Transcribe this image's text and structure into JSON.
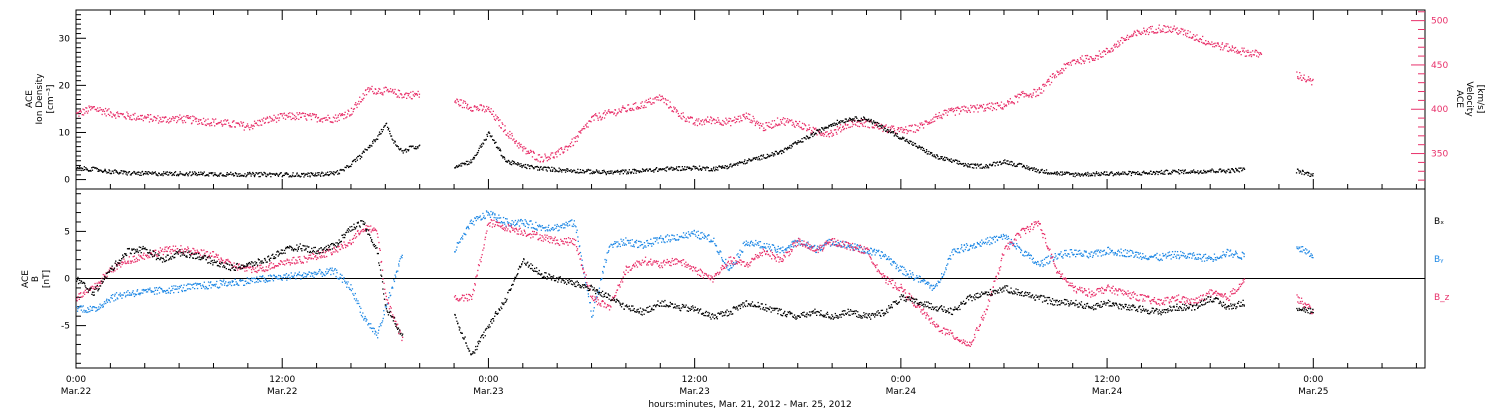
{
  "colors": {
    "density": "#000000",
    "velocity": "#e8306a",
    "bx": "#000000",
    "by": "#1e88e5",
    "bz": "#e8306a"
  },
  "x_axis": {
    "label": "hours:minutes, Mar. 21, 2012 - Mar. 25, 2012",
    "ticks": [
      {
        "hour": 0,
        "top": "0:00",
        "bottom": "Mar.22"
      },
      {
        "hour": 12,
        "top": "12:00",
        "bottom": "Mar.22"
      },
      {
        "hour": 24,
        "top": "0:00",
        "bottom": "Mar.23"
      },
      {
        "hour": 36,
        "top": "12:00",
        "bottom": "Mar.23"
      },
      {
        "hour": 48,
        "top": "0:00",
        "bottom": "Mar.24"
      },
      {
        "hour": 60,
        "top": "12:00",
        "bottom": "Mar.24"
      },
      {
        "hour": 72,
        "top": "0:00",
        "bottom": "Mar.25"
      }
    ]
  },
  "chart_data": [
    {
      "type": "scatter",
      "xlim": [
        0,
        78.5
      ],
      "ylabel_left": [
        "ACE",
        "Ion Density",
        "[cm⁻³]"
      ],
      "ylabel_right": [
        "ACE",
        "Velocity",
        "[km/s]"
      ],
      "ylim_left": [
        -2,
        36
      ],
      "ylim_right": [
        310,
        512
      ],
      "yticks_left": [
        0,
        10,
        20,
        30
      ],
      "yticks_right": [
        350,
        400,
        450,
        500
      ],
      "series": [
        {
          "name": "Density",
          "axis": "left",
          "color_key": "density",
          "x": [
            0,
            1,
            2,
            3,
            4,
            6,
            8,
            10,
            12,
            13,
            14,
            15,
            15.5,
            16,
            16.5,
            17,
            17.5,
            18,
            18.5,
            19,
            19.5,
            20,
            20.3,
            21,
            22,
            23,
            24,
            25,
            26,
            27,
            28,
            29,
            30,
            31,
            32,
            33,
            34,
            35,
            36,
            37,
            38,
            39,
            40,
            41,
            42,
            43,
            44,
            45,
            46,
            47,
            47.5,
            48,
            49,
            50,
            51,
            52,
            53,
            54,
            55,
            56,
            57,
            58,
            59,
            60,
            61,
            62,
            63,
            64,
            65,
            66,
            67,
            68,
            69,
            70,
            71,
            72
          ],
          "y": [
            2.5,
            2.3,
            1.8,
            1.5,
            1.4,
            1.4,
            1.3,
            1.2,
            1.2,
            1.1,
            1.2,
            1.5,
            2,
            3.5,
            5,
            7,
            9,
            12,
            8,
            6,
            7,
            7,
            null,
            null,
            3,
            4,
            10,
            4,
            3,
            2.5,
            2.2,
            2,
            1.8,
            1.6,
            1.8,
            2,
            2.3,
            2.5,
            2.6,
            2.4,
            3,
            4,
            5,
            6,
            8,
            10,
            12,
            13,
            13,
            11,
            10,
            9,
            7,
            5,
            4,
            3,
            3,
            4,
            3,
            2,
            1.5,
            1.2,
            1.3,
            1.4,
            1.4,
            1.5,
            1.6,
            1.8,
            1.8,
            2,
            2,
            2.3,
            null,
            null,
            2,
            1
          ]
        },
        {
          "name": "Velocity",
          "axis": "right",
          "color_key": "velocity",
          "x": [
            0,
            1,
            2,
            3,
            4,
            5,
            6,
            7,
            8,
            9,
            10,
            11,
            12,
            13,
            14,
            15,
            16,
            17,
            18,
            19,
            20,
            20.3,
            21,
            22,
            23,
            24,
            25,
            26,
            27,
            28,
            29,
            30,
            31,
            32,
            33,
            34,
            35,
            36,
            37,
            38,
            39,
            40,
            41,
            42,
            43,
            44,
            45,
            46,
            47,
            48,
            49,
            50,
            51,
            52,
            53,
            54,
            55,
            56,
            57,
            58,
            59,
            60,
            61,
            62,
            63,
            64,
            65,
            66,
            67,
            68,
            69,
            70,
            71,
            72
          ],
          "y": [
            395,
            402,
            396,
            393,
            391,
            389,
            390,
            388,
            386,
            384,
            381,
            388,
            392,
            393,
            391,
            390,
            398,
            423,
            421,
            417,
            417,
            null,
            null,
            410,
            403,
            400,
            376,
            355,
            345,
            350,
            365,
            390,
            396,
            401,
            406,
            414,
            396,
            385,
            389,
            386,
            393,
            380,
            388,
            384,
            375,
            374,
            385,
            385,
            379,
            376,
            380,
            392,
            398,
            401,
            403,
            405,
            416,
            420,
            440,
            455,
            458,
            466,
            480,
            488,
            492,
            490,
            483,
            475,
            470,
            465,
            462,
            null,
            440,
            430
          ]
        }
      ]
    },
    {
      "type": "scatter",
      "xlim": [
        0,
        78.5
      ],
      "ylabel_left": [
        "ACE",
        "B",
        "[nT]"
      ],
      "ylim": [
        -9.5,
        9.5
      ],
      "yticks": [
        -5,
        0,
        5
      ],
      "zero_line": true,
      "series": [
        {
          "name": "Bx",
          "color_key": "bx",
          "x": [
            0,
            1,
            2,
            3,
            4,
            5,
            6,
            7,
            8,
            9,
            10,
            11,
            12,
            13,
            14,
            15,
            16,
            16.7,
            17.5,
            18,
            19,
            20,
            21,
            22,
            23,
            24,
            25,
            26,
            27,
            28,
            29,
            30,
            31,
            32,
            33,
            34,
            35,
            36,
            37,
            38,
            39,
            40,
            41,
            42,
            43,
            44,
            45,
            46,
            47,
            48,
            49,
            50,
            51,
            52,
            53,
            54,
            55,
            56,
            57,
            58,
            59,
            60,
            61,
            62,
            63,
            64,
            65,
            66,
            67,
            68,
            69,
            70,
            71,
            72
          ],
          "y": [
            0,
            -1.5,
            1,
            3,
            3.2,
            2,
            2.8,
            2.5,
            1.8,
            1.2,
            1.5,
            2,
            3,
            3.4,
            3,
            3.5,
            5.5,
            6,
            3,
            -3,
            -6,
            null,
            null,
            -4,
            -8,
            -5,
            -2,
            2,
            0.5,
            0,
            -0.5,
            -1,
            -2,
            -3,
            -3.5,
            -2.5,
            -3,
            -3.2,
            -4,
            -3.5,
            -2.5,
            -3,
            -3.5,
            -4,
            -3.5,
            -4,
            -3.5,
            -4,
            -3.5,
            -2,
            -2.5,
            -3,
            -3.5,
            -2,
            -1.5,
            -1,
            -1.5,
            -2,
            -2.5,
            -2.5,
            -3,
            -2.5,
            -3,
            -3.2,
            -3.5,
            -3,
            -3,
            -2,
            -3,
            -2.5,
            null,
            null,
            -3,
            -3.5
          ]
        },
        {
          "name": "By",
          "color_key": "by",
          "x": [
            0,
            1,
            2,
            3,
            4,
            5,
            6,
            7,
            8,
            9,
            10,
            11,
            12,
            13,
            14,
            15,
            16,
            16.7,
            17.5,
            18,
            19,
            20,
            21,
            22,
            23,
            24,
            25,
            26,
            27,
            28,
            29,
            30,
            31,
            32,
            33,
            34,
            35,
            36,
            37,
            38,
            39,
            40,
            41,
            42,
            43,
            44,
            45,
            46,
            47,
            48,
            49,
            50,
            51,
            52,
            53,
            54,
            55,
            56,
            57,
            58,
            59,
            60,
            61,
            62,
            63,
            64,
            65,
            66,
            67,
            68,
            69,
            70,
            71,
            72
          ],
          "y": [
            -3,
            -3.3,
            -2,
            -1.5,
            -1.4,
            -1.2,
            -1,
            -0.8,
            -0.6,
            -0.4,
            -0.2,
            0,
            0.2,
            0.4,
            0.6,
            0.8,
            -1,
            -4,
            -6,
            -3,
            3,
            null,
            null,
            3,
            6,
            7,
            6,
            6,
            5.5,
            5.5,
            6,
            -4,
            3.5,
            4,
            3.6,
            4.2,
            4.5,
            4.8,
            4.2,
            1,
            4,
            3.5,
            3,
            4,
            3.2,
            4,
            3.5,
            3,
            2.5,
            1,
            0,
            -1,
            3,
            3.5,
            4,
            4.5,
            3,
            1.5,
            2.5,
            2.8,
            2.5,
            3,
            2.8,
            2.5,
            2.3,
            2.6,
            2.4,
            2.2,
            2.8,
            2.4,
            null,
            null,
            3.5,
            2.5
          ]
        },
        {
          "name": "Bz",
          "color_key": "bz",
          "x": [
            0,
            1,
            2,
            3,
            4,
            5,
            6,
            7,
            8,
            9,
            10,
            11,
            12,
            13,
            14,
            15,
            16,
            16.7,
            17.5,
            18,
            19,
            20,
            21,
            22,
            23,
            24,
            25,
            26,
            27,
            28,
            29,
            30,
            31,
            32,
            33,
            34,
            35,
            36,
            37,
            38,
            39,
            40,
            41,
            42,
            43,
            44,
            45,
            46,
            47,
            48,
            49,
            50,
            51,
            52,
            53,
            54,
            55,
            56,
            57,
            58,
            59,
            60,
            61,
            62,
            63,
            64,
            65,
            66,
            67,
            68,
            69,
            70,
            71,
            72
          ],
          "y": [
            -2,
            -1,
            1,
            2,
            2.5,
            3,
            3.2,
            2.8,
            2.5,
            1.5,
            1,
            1.2,
            1.8,
            2,
            2.5,
            3,
            4,
            5.5,
            5,
            -2,
            -6.5,
            null,
            null,
            -2,
            -2,
            6,
            5.5,
            5,
            4.5,
            4,
            4,
            -2,
            -3,
            1,
            2,
            1.5,
            2,
            1,
            0,
            2,
            1.5,
            3,
            2,
            4,
            3,
            4,
            3.5,
            3,
            0,
            -1,
            -3,
            -5,
            -6,
            -7,
            -3,
            3,
            5,
            6,
            1,
            -1,
            -1.5,
            -1,
            -1.5,
            -2,
            -2.5,
            -2,
            -2.5,
            -1.5,
            -2,
            0,
            null,
            null,
            -2,
            -3.5
          ]
        }
      ],
      "legend": [
        "Bₓ",
        "Bᵧ",
        "B_z"
      ]
    }
  ]
}
